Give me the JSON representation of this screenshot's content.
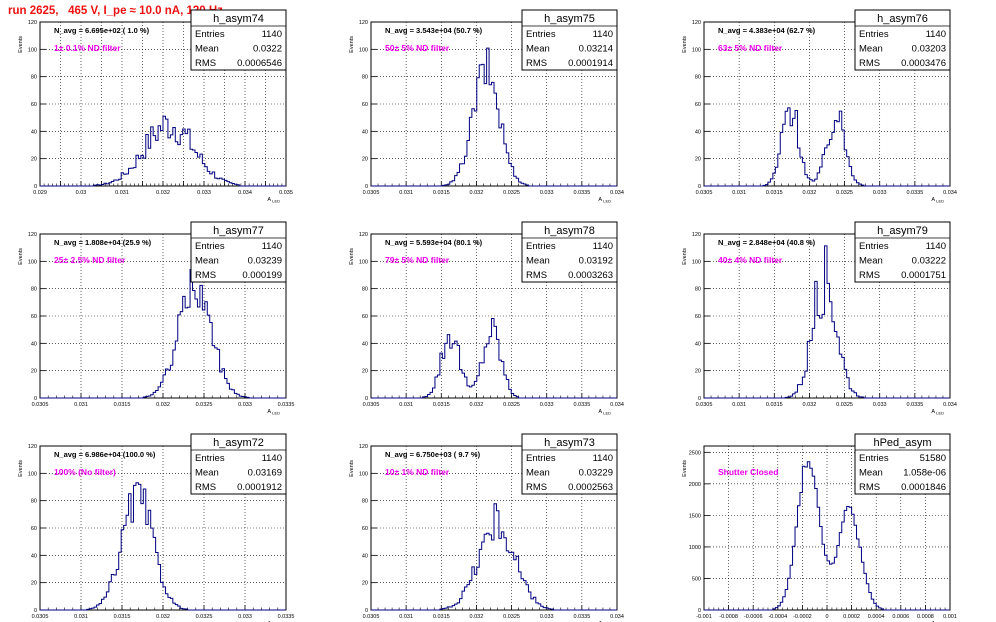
{
  "header": {
    "title": "run 2625,   465 V, I_pe ≈ 10.0 nA, 120 Hz"
  },
  "stats_labels": {
    "entries": "Entries",
    "mean": "Mean",
    "rms": "RMS"
  },
  "colors": {
    "histogram": "#000080",
    "title": "#ee1111",
    "annotation": "#ee00ee",
    "grid": "#000000"
  },
  "chart_data": [
    {
      "type": "bar",
      "name": "h_asym74",
      "navg": "N_avg = 6.695e+02 ( 1.0 %)",
      "annotation": "1± 0.1% ND filter",
      "entries": "1140",
      "mean": "0.0322",
      "rms": "0.0006546",
      "xlabel": "A",
      "xlabel_sub": "LED",
      "ylabel": "Events",
      "xlim": [
        0.029,
        0.035
      ],
      "ylim": [
        0,
        120
      ],
      "xticks": [
        "0.029",
        "0.0295",
        "0.03",
        "0.0305",
        "0.031",
        "0.0315",
        "0.032",
        "0.0325",
        "0.033",
        "0.0335",
        "0.034",
        "0.0345",
        "0.035"
      ],
      "xticks_shown": [
        true,
        false,
        true,
        false,
        true,
        false,
        true,
        false,
        true,
        false,
        true,
        false,
        true
      ],
      "yticks": [
        "0",
        "20",
        "40",
        "60",
        "80",
        "100",
        "120"
      ],
      "peaks": [
        [
          0.03215,
          45,
          0.0006
        ]
      ],
      "noise": 0.3
    },
    {
      "type": "bar",
      "name": "h_asym75",
      "navg": "N_avg = 3.543e+04 (50.7 %)",
      "annotation": "50± 5% ND filter",
      "entries": "1140",
      "mean": "0.03214",
      "rms": "0.0001914",
      "xlabel": "A",
      "xlabel_sub": "LED",
      "ylabel": "Events",
      "xlim": [
        0.0305,
        0.034
      ],
      "ylim": [
        0,
        120
      ],
      "xticks": [
        "0.0305",
        "0.031",
        "0.0315",
        "0.032",
        "0.0325",
        "0.033",
        "0.0335",
        "0.034"
      ],
      "xticks_shown": [
        true,
        true,
        true,
        true,
        true,
        true,
        true,
        true
      ],
      "yticks": [
        "0",
        "20",
        "40",
        "60",
        "80",
        "100",
        "120"
      ],
      "peaks": [
        [
          0.03214,
          85,
          0.00019
        ]
      ],
      "noise": 0.2
    },
    {
      "type": "bar",
      "name": "h_asym76",
      "navg": "N_avg = 4.383e+04 (62.7 %)",
      "annotation": "63± 5% ND filter",
      "entries": "1140",
      "mean": "0.03203",
      "rms": "0.0003476",
      "xlabel": "A",
      "xlabel_sub": "LED",
      "ylabel": "Events",
      "xlim": [
        0.0305,
        0.034
      ],
      "ylim": [
        0,
        120
      ],
      "xticks": [
        "0.0305",
        "0.031",
        "0.0315",
        "0.032",
        "0.0325",
        "0.033",
        "0.0335",
        "0.034"
      ],
      "xticks_shown": [
        true,
        true,
        true,
        true,
        true,
        true,
        true,
        true
      ],
      "yticks": [
        "0",
        "20",
        "40",
        "60",
        "80",
        "100",
        "120"
      ],
      "peaks": [
        [
          0.03173,
          58,
          0.00012
        ],
        [
          0.03238,
          50,
          0.00013
        ]
      ],
      "noise": 0.25
    },
    {
      "type": "bar",
      "name": "h_asym77",
      "navg": "N_avg = 1.808e+04 (25.9 %)",
      "annotation": "25± 2.5% ND filter",
      "entries": "1140",
      "mean": "0.03239",
      "rms": "0.000199",
      "xlabel": "A",
      "xlabel_sub": "LED",
      "ylabel": "Events",
      "xlim": [
        0.0305,
        0.0335
      ],
      "ylim": [
        0,
        120
      ],
      "xticks": [
        "0.0305",
        "0.031",
        "0.0315",
        "0.032",
        "0.0325",
        "0.033",
        "0.0335"
      ],
      "xticks_shown": [
        true,
        true,
        true,
        true,
        true,
        true,
        true
      ],
      "yticks": [
        "0",
        "20",
        "40",
        "60",
        "80",
        "100",
        "120"
      ],
      "peaks": [
        [
          0.03239,
          82,
          0.0002
        ]
      ],
      "noise": 0.2
    },
    {
      "type": "bar",
      "name": "h_asym78",
      "navg": "N_avg = 5.593e+04 (80.1 %)",
      "annotation": "79± 5% ND filter",
      "entries": "1140",
      "mean": "0.03192",
      "rms": "0.0003263",
      "xlabel": "A",
      "xlabel_sub": "LED",
      "ylabel": "Events",
      "xlim": [
        0.0305,
        0.034
      ],
      "ylim": [
        0,
        120
      ],
      "xticks": [
        "0.0305",
        "0.031",
        "0.0315",
        "0.032",
        "0.0325",
        "0.033",
        "0.0335",
        "0.034"
      ],
      "xticks_shown": [
        true,
        true,
        true,
        true,
        true,
        true,
        true,
        true
      ],
      "yticks": [
        "0",
        "20",
        "40",
        "60",
        "80",
        "100",
        "120"
      ],
      "peaks": [
        [
          0.03163,
          48,
          0.00013
        ],
        [
          0.03222,
          50,
          0.00013
        ]
      ],
      "noise": 0.25
    },
    {
      "type": "bar",
      "name": "h_asym79",
      "navg": "N_avg = 2.848e+04 (40.8 %)",
      "annotation": "40± 4% ND filter",
      "entries": "1140",
      "mean": "0.03222",
      "rms": "0.0001751",
      "xlabel": "A",
      "xlabel_sub": "LED",
      "ylabel": "Events",
      "xlim": [
        0.0305,
        0.034
      ],
      "ylim": [
        0,
        120
      ],
      "xticks": [
        "0.0305",
        "0.031",
        "0.0315",
        "0.032",
        "0.0325",
        "0.033",
        "0.0335",
        "0.034"
      ],
      "xticks_shown": [
        true,
        true,
        true,
        true,
        true,
        true,
        true,
        true
      ],
      "yticks": [
        "0",
        "20",
        "40",
        "60",
        "80",
        "100",
        "120"
      ],
      "peaks": [
        [
          0.03222,
          88,
          0.00017
        ]
      ],
      "noise": 0.3
    },
    {
      "type": "bar",
      "name": "h_asym72",
      "navg": "N_avg = 6.986e+04 (100.0 %)",
      "annotation": "100% (No filter)",
      "entries": "1140",
      "mean": "0.03169",
      "rms": "0.0001912",
      "xlabel": "A",
      "xlabel_sub": "LED",
      "ylabel": "Events",
      "xlim": [
        0.0305,
        0.0335
      ],
      "ylim": [
        0,
        120
      ],
      "xticks": [
        "0.0305",
        "0.031",
        "0.0315",
        "0.032",
        "0.0325",
        "0.033",
        "0.0335"
      ],
      "xticks_shown": [
        true,
        true,
        true,
        true,
        true,
        true,
        true
      ],
      "yticks": [
        "0",
        "20",
        "40",
        "60",
        "80",
        "100",
        "120"
      ],
      "peaks": [
        [
          0.03169,
          82,
          0.00019
        ]
      ],
      "noise": 0.2
    },
    {
      "type": "bar",
      "name": "h_asym73",
      "navg": "N_avg = 6.750e+03 ( 9.7 %)",
      "annotation": "10± 1% ND filter",
      "entries": "1140",
      "mean": "0.03229",
      "rms": "0.0002563",
      "xlabel": "A",
      "xlabel_sub": "LED",
      "ylabel": "Events",
      "xlim": [
        0.0305,
        0.034
      ],
      "ylim": [
        0,
        120
      ],
      "xticks": [
        "0.0305",
        "0.031",
        "0.0315",
        "0.032",
        "0.0325",
        "0.033",
        "0.0335",
        "0.034"
      ],
      "xticks_shown": [
        true,
        true,
        true,
        true,
        true,
        true,
        true,
        true
      ],
      "yticks": [
        "0",
        "20",
        "40",
        "60",
        "80",
        "100",
        "120"
      ],
      "peaks": [
        [
          0.03229,
          63,
          0.00026
        ]
      ],
      "noise": 0.25
    },
    {
      "type": "bar",
      "name": "hPed_asym",
      "navg": "",
      "annotation": "Shutter Closed",
      "entries": "51580",
      "mean": "1.058e-06",
      "rms": "0.0001846",
      "xlabel": "A",
      "xlabel_sub": "LED",
      "ylabel": "Events",
      "xlim": [
        -0.001,
        0.001
      ],
      "ylim": [
        0,
        2600
      ],
      "xticks": [
        "-0.001",
        "-0.0008",
        "-0.0006",
        "-0.0004",
        "-0.0002",
        "0",
        "0.0002",
        "0.0004",
        "0.0006",
        "0.0008",
        "0.001"
      ],
      "xticks_shown": [
        true,
        true,
        true,
        true,
        true,
        true,
        true,
        true,
        true,
        true,
        true
      ],
      "yticks": [
        "0",
        "500",
        "1000",
        "1500",
        "2000",
        "2500"
      ],
      "peaks": [
        [
          -0.00015,
          2400,
          9e-05
        ],
        [
          0.00018,
          1600,
          9e-05
        ]
      ],
      "noise": 0.05
    }
  ]
}
